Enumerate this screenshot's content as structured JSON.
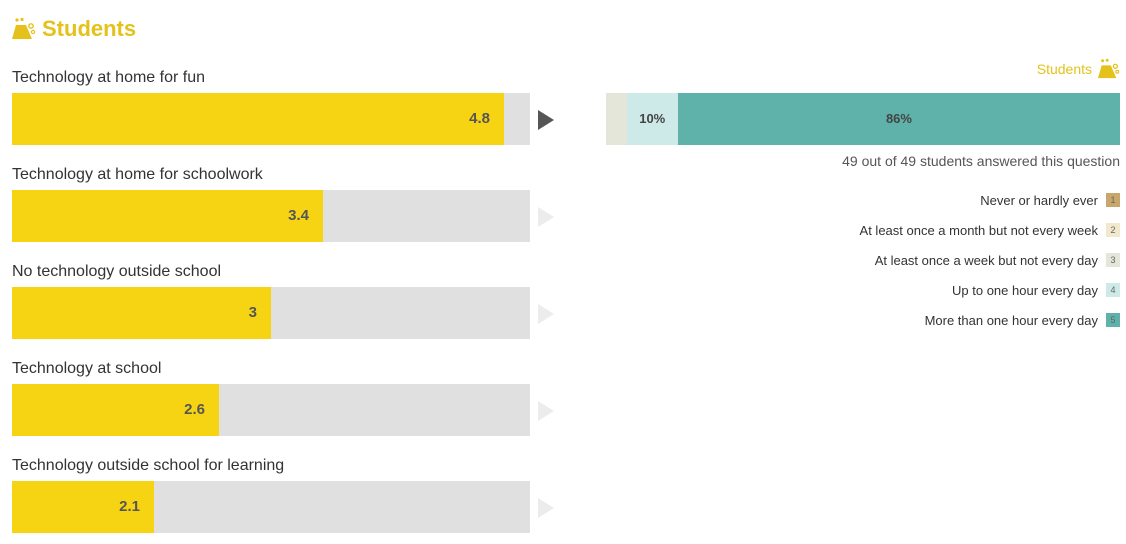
{
  "header": {
    "title": "Students",
    "icon": "students-icon",
    "accent": "#E4C21B"
  },
  "chart_data": [
    {
      "type": "bar",
      "orientation": "horizontal",
      "categories": [
        "Technology at home for fun",
        "Technology at home for schoolwork",
        "No technology outside school",
        "Technology at school",
        "Technology outside school for learning"
      ],
      "values": [
        4.8,
        3.4,
        3,
        2.6,
        2.1
      ],
      "value_labels": [
        "4.8",
        "3.4",
        "3",
        "2.6",
        "2.1"
      ],
      "xlim": [
        1,
        5
      ],
      "bar_color": "#F6D414",
      "track_color": "#E0E0E0",
      "selected_index": 0
    },
    {
      "type": "bar",
      "stacked": true,
      "title": "Students",
      "categories": [
        "Never or hardly ever",
        "At least once a month but not every week",
        "At least once a week but not every day",
        "Up to one hour every day",
        "More than one hour every day"
      ],
      "legend_numbers": [
        "1",
        "2",
        "3",
        "4",
        "5"
      ],
      "values_percent": [
        0,
        0,
        4,
        10,
        86
      ],
      "segment_labels": [
        "",
        "",
        "",
        "10%",
        "86%"
      ],
      "colors": [
        "#C9A66B",
        "#F2E8CC",
        "#E3E6D8",
        "#CDEAE8",
        "#5FB2AA"
      ],
      "legend_placement": "right",
      "answered_text": "49 out of 49 students answered this question"
    }
  ]
}
